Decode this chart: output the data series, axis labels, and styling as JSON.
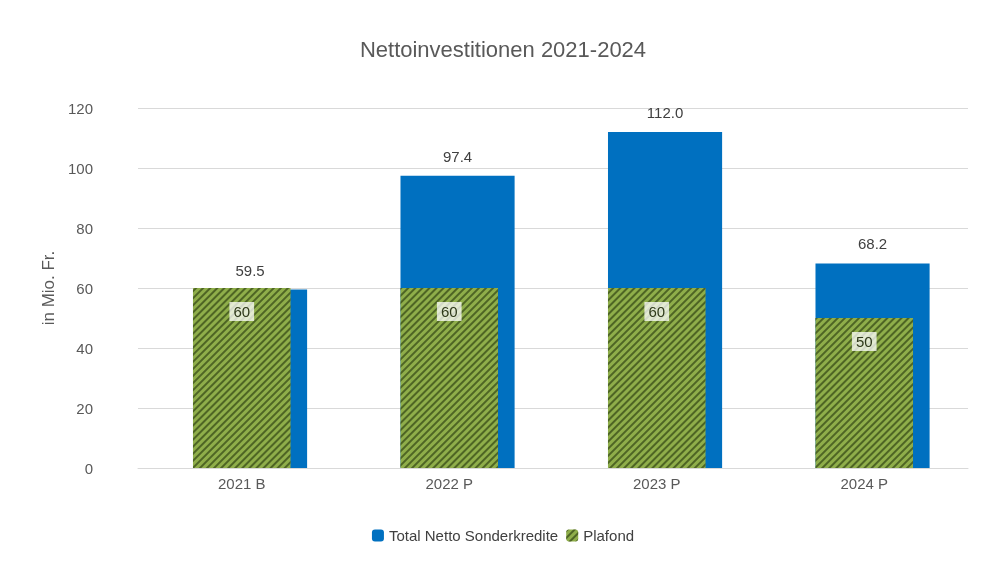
{
  "chart_data": {
    "type": "bar",
    "title": "Nettoinvestitionen 2021-2024",
    "ylabel": "in Mio. Fr.",
    "categories": [
      "2021 B",
      "2022 P",
      "2023 P",
      "2024 P"
    ],
    "series": [
      {
        "name": "Total Netto Sonderkredite",
        "color": "#0070c0",
        "values": [
          59.5,
          97.4,
          112.0,
          68.2
        ],
        "value_labels": [
          "59.5",
          "97.4",
          "112.0",
          "68.2"
        ]
      },
      {
        "name": "Plafond",
        "color": "#8fae4a",
        "values": [
          60,
          60,
          60,
          50
        ],
        "value_labels": [
          "60",
          "60",
          "60",
          "50"
        ]
      }
    ],
    "ylim": [
      0,
      120
    ],
    "yticks": [
      0,
      20,
      40,
      60,
      80,
      100,
      120
    ],
    "grid": "y",
    "legend": "bottom"
  }
}
